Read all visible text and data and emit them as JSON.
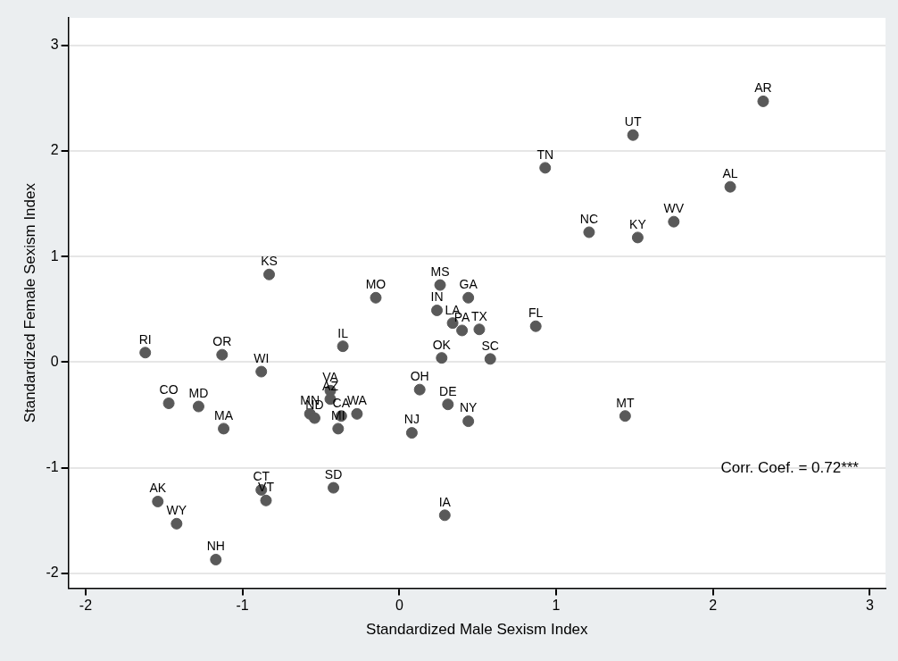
{
  "chart_data": {
    "type": "scatter",
    "xlabel": "Standardized Male Sexism Index",
    "ylabel": "Standardized Female Sexism Index",
    "xlim": [
      -2.11,
      3.1
    ],
    "ylim": [
      -2.14,
      3.26
    ],
    "xticks": [
      {
        "value": -2,
        "label": "-2"
      },
      {
        "value": -1,
        "label": "-1"
      },
      0,
      1,
      2,
      3
    ],
    "yticks": [
      {
        "value": -2,
        "label": "-2"
      },
      {
        "value": -1,
        "label": "-1"
      },
      0,
      1,
      2,
      3
    ],
    "grid": "y",
    "legend": false,
    "marker": "circle",
    "annotations": [
      "Corr. Coef. = 0.72***"
    ],
    "series": [
      {
        "color": "#595959",
        "x": [
          2.32,
          1.49,
          0.93,
          2.11,
          1.75,
          1.21,
          1.52,
          -0.83,
          -0.15,
          0.26,
          0.44,
          0.24,
          0.34,
          0.4,
          0.51,
          0.87,
          -0.36,
          0.27,
          0.58,
          -0.88,
          0.13,
          0.31,
          0.44,
          0.08,
          -0.44,
          -0.44,
          -0.57,
          -0.54,
          -0.27,
          -0.37,
          -0.39,
          -1.62,
          -1.13,
          -1.47,
          -1.28,
          -1.12,
          -1.54,
          -1.42,
          -1.17,
          -0.88,
          -0.85,
          -0.42,
          0.29,
          1.44
        ],
        "values": [
          2.47,
          2.15,
          1.84,
          1.66,
          1.33,
          1.23,
          1.18,
          0.83,
          0.61,
          0.73,
          0.61,
          0.49,
          0.37,
          0.3,
          0.31,
          0.34,
          0.15,
          0.04,
          0.03,
          -0.09,
          -0.26,
          -0.4,
          -0.56,
          -0.67,
          -0.27,
          -0.35,
          -0.49,
          -0.53,
          -0.49,
          -0.51,
          -0.63,
          0.09,
          0.07,
          -0.39,
          -0.42,
          -0.63,
          -1.32,
          -1.53,
          -1.87,
          -1.21,
          -1.31,
          -1.19,
          -1.45,
          -0.51
        ],
        "value_labels": [
          "AR",
          "UT",
          "TN",
          "AL",
          "WV",
          "NC",
          "KY",
          "KS",
          "MO",
          "MS",
          "GA",
          "IN",
          "LA",
          "PA",
          "TX",
          "FL",
          "IL",
          "OK",
          "SC",
          "WI",
          "OH",
          "DE",
          "NY",
          "NJ",
          "VA",
          "AZ",
          "MN",
          "ND",
          "WA",
          "CA",
          "MI",
          "RI",
          "OR",
          "CO",
          "MD",
          "MA",
          "AK",
          "WY",
          "NH",
          "CT",
          "VT",
          "SD",
          "IA",
          "MT"
        ]
      }
    ]
  }
}
